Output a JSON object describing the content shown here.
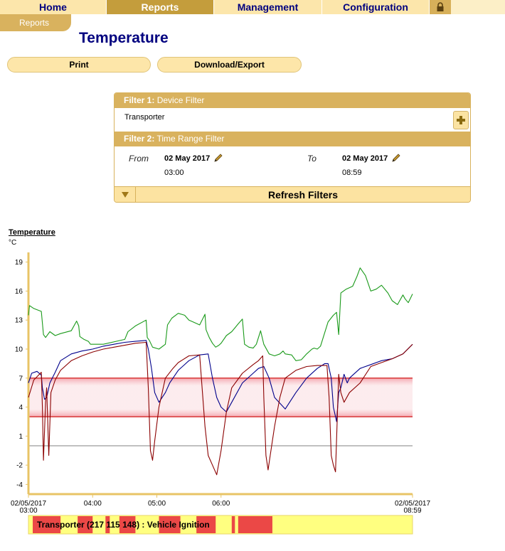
{
  "nav": {
    "tabs": [
      {
        "label": "Home"
      },
      {
        "label": "Reports"
      },
      {
        "label": "Management"
      },
      {
        "label": "Configuration"
      }
    ],
    "active_tab": "Reports",
    "subtab": "Reports",
    "lock_icon": "lock-icon"
  },
  "page": {
    "title": "Temperature",
    "print_label": "Print",
    "export_label": "Download/Export"
  },
  "filters": {
    "filter1_label": "Filter 1:",
    "filter1_name": "Device Filter",
    "device": "Transporter",
    "filter2_label": "Filter 2:",
    "filter2_name": "Time Range Filter",
    "from_label": "From",
    "from_date": "02 May 2017",
    "from_time": "03:00",
    "to_label": "To",
    "to_date": "02 May 2017",
    "to_time": "08:59",
    "refresh_label": "Refresh Filters"
  },
  "colors": {
    "accent": "#d9b25e",
    "nav_bg": "#fce6ab",
    "nav_text": "#00007f",
    "series_green": "#1a9a1a",
    "series_blue": "#00008b",
    "series_red": "#8b0000",
    "threshold": "#cc0000",
    "zero_line": "#c0c0c0",
    "ignition_on": "#e8283c",
    "ignition_off": "#ffff80"
  },
  "chart_data": {
    "type": "line",
    "title": "Temperature",
    "ylabel": "°C",
    "ylim": [
      -5,
      20
    ],
    "yticks": [
      "19",
      "16",
      "13",
      "10",
      "7",
      "4",
      "1",
      "-2",
      "-4"
    ],
    "x_start_label": [
      "02/05/2017",
      "03:00"
    ],
    "x_end_label": [
      "02/05/2017",
      "08:59"
    ],
    "x_tick_labels": [
      "04:00",
      "05:00",
      "06:00"
    ],
    "xlim": [
      "03:00",
      "08:59"
    ],
    "thresholds": [
      7,
      3
    ],
    "reference_line": 0,
    "series": [
      {
        "color": "green",
        "x": [
          "03:00",
          "03:01",
          "03:05",
          "03:12",
          "03:14",
          "03:16",
          "03:20",
          "03:25",
          "03:30",
          "03:40",
          "03:45",
          "03:47",
          "03:48",
          "03:52",
          "03:56",
          "03:58",
          "04:00",
          "04:10",
          "04:30",
          "04:33",
          "04:40",
          "04:50",
          "04:51",
          "04:53",
          "04:56",
          "05:02",
          "05:08",
          "05:10",
          "05:14",
          "05:20",
          "05:26",
          "05:30",
          "05:34",
          "05:40",
          "05:45",
          "05:46",
          "05:49",
          "05:52",
          "05:55",
          "05:58",
          "06:00",
          "06:05",
          "06:10",
          "06:13",
          "06:16",
          "06:20",
          "06:22",
          "06:26",
          "06:30",
          "06:33",
          "06:37",
          "06:40",
          "06:45",
          "06:50",
          "06:55",
          "06:58",
          "07:00",
          "07:06",
          "07:10",
          "07:15",
          "07:20",
          "07:25",
          "07:27",
          "07:30",
          "07:33",
          "07:40",
          "07:45",
          "07:48",
          "07:50",
          "07:52",
          "07:57",
          "08:03",
          "08:07",
          "08:10",
          "08:15",
          "08:20",
          "08:25",
          "08:30",
          "08:36",
          "08:40",
          "08:45",
          "08:50",
          "08:52",
          "08:55",
          "08:59"
        ],
        "values": [
          13.5,
          14.5,
          14.2,
          13.9,
          11.5,
          11.2,
          11.8,
          11.4,
          11.6,
          11.9,
          12.9,
          12.4,
          11.3,
          11.0,
          10.8,
          10.5,
          10.5,
          10.5,
          11.0,
          11.8,
          12.4,
          13.0,
          11.2,
          10.9,
          10.2,
          10.0,
          10.5,
          12.5,
          13.2,
          13.7,
          13.5,
          13.0,
          12.8,
          12.5,
          13.6,
          12.0,
          11.2,
          10.6,
          10.2,
          10.4,
          10.6,
          11.4,
          11.8,
          12.2,
          12.6,
          13.1,
          10.5,
          10.2,
          10.1,
          10.5,
          11.9,
          10.5,
          9.5,
          9.3,
          9.5,
          9.8,
          9.5,
          9.4,
          8.8,
          8.9,
          9.5,
          10.0,
          10.1,
          10.0,
          10.3,
          12.8,
          13.5,
          13.8,
          11.5,
          15.8,
          16.2,
          16.5,
          17.5,
          18.4,
          17.6,
          16.0,
          16.2,
          16.6,
          15.8,
          15.0,
          14.6,
          15.6,
          15.2,
          14.8,
          15.7
        ]
      },
      {
        "color": "blue",
        "x": [
          "03:00",
          "03:03",
          "03:08",
          "03:12",
          "03:13",
          "03:15",
          "03:17",
          "03:20",
          "03:25",
          "03:30",
          "03:40",
          "03:50",
          "04:00",
          "04:10",
          "04:20",
          "04:30",
          "04:40",
          "04:50",
          "04:52",
          "04:55",
          "04:58",
          "05:02",
          "05:08",
          "05:12",
          "05:20",
          "05:30",
          "05:40",
          "05:48",
          "05:52",
          "05:56",
          "06:00",
          "06:05",
          "06:10",
          "06:20",
          "06:30",
          "06:35",
          "06:40",
          "06:45",
          "06:50",
          "07:00",
          "07:10",
          "07:20",
          "07:30",
          "07:37",
          "07:40",
          "07:43",
          "07:45",
          "07:48",
          "07:50",
          "07:52",
          "07:55",
          "07:58",
          "08:00",
          "08:10",
          "08:20",
          "08:30",
          "08:40",
          "08:50",
          "08:59"
        ],
        "values": [
          6.5,
          7.5,
          7.7,
          7.3,
          6.0,
          4.8,
          5.0,
          6.5,
          7.6,
          8.8,
          9.5,
          9.8,
          10.0,
          10.3,
          10.5,
          10.7,
          10.8,
          10.9,
          10.0,
          8.0,
          5.5,
          4.5,
          5.5,
          6.5,
          7.8,
          8.8,
          9.4,
          9.5,
          7.0,
          5.0,
          4.0,
          3.5,
          4.5,
          6.5,
          7.5,
          8.0,
          8.2,
          7.0,
          5.0,
          3.8,
          5.5,
          7.0,
          8.0,
          8.5,
          8.5,
          7.0,
          4.0,
          2.5,
          5.5,
          6.0,
          7.4,
          6.5,
          7.0,
          8.0,
          8.4,
          8.8,
          9.0,
          9.5,
          10.5
        ]
      },
      {
        "color": "dark red",
        "x": [
          "03:00",
          "03:05",
          "03:12",
          "03:13",
          "03:14",
          "03:16",
          "03:17",
          "03:19",
          "03:21",
          "03:25",
          "03:30",
          "03:40",
          "03:50",
          "04:00",
          "04:10",
          "04:20",
          "04:30",
          "04:40",
          "04:50",
          "04:52",
          "04:54",
          "04:56",
          "04:58",
          "05:02",
          "05:08",
          "05:15",
          "05:20",
          "05:30",
          "05:40",
          "05:45",
          "05:48",
          "05:52",
          "05:56",
          "06:00",
          "06:05",
          "06:10",
          "06:20",
          "06:30",
          "06:35",
          "06:39",
          "06:40",
          "06:42",
          "06:44",
          "06:46",
          "06:50",
          "06:55",
          "07:00",
          "07:10",
          "07:20",
          "07:30",
          "07:35",
          "07:39",
          "07:41",
          "07:43",
          "07:45",
          "07:47",
          "07:50",
          "07:52",
          "07:55",
          "08:00",
          "08:10",
          "08:20",
          "08:30",
          "08:40",
          "08:50",
          "08:59"
        ],
        "values": [
          5.0,
          6.8,
          7.6,
          4.0,
          -1.5,
          4.5,
          6.0,
          -1.0,
          5.5,
          6.8,
          7.8,
          8.8,
          9.3,
          9.7,
          10.0,
          10.2,
          10.4,
          10.6,
          10.7,
          6.0,
          -0.5,
          -1.5,
          0.5,
          4.0,
          7.0,
          8.0,
          8.6,
          9.3,
          9.4,
          2.0,
          -1.0,
          -2.0,
          -3.0,
          -0.5,
          3.5,
          6.0,
          7.5,
          8.4,
          8.8,
          9.3,
          5.0,
          -1.0,
          -2.5,
          -1.0,
          2.0,
          5.0,
          7.0,
          7.8,
          8.2,
          8.3,
          8.3,
          8.3,
          5.0,
          -1.0,
          -2.0,
          -2.7,
          7.4,
          5.5,
          4.5,
          5.5,
          6.5,
          8.2,
          8.6,
          9.0,
          9.5,
          10.5
        ]
      }
    ],
    "ignition_bar": {
      "label": "Transporter (217 115 148) :  Vehicle Ignition",
      "on_intervals": [
        [
          "03:04",
          "03:30"
        ],
        [
          "03:46",
          "04:00"
        ],
        [
          "04:12",
          "04:16"
        ],
        [
          "04:25",
          "04:40"
        ],
        [
          "05:02",
          "05:22"
        ],
        [
          "05:37",
          "05:55"
        ],
        [
          "06:10",
          "06:13"
        ],
        [
          "06:16",
          "06:48"
        ]
      ]
    }
  }
}
